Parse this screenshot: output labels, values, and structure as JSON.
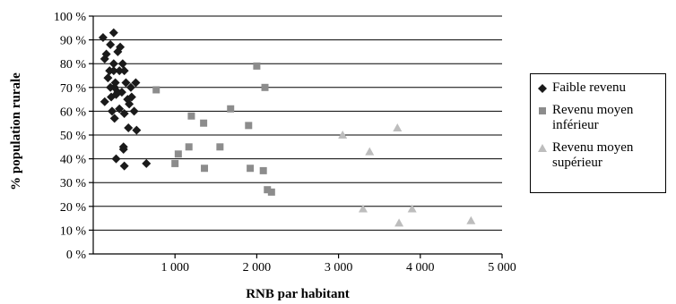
{
  "chart_data": {
    "type": "scatter",
    "xlabel": "RNB par habitant",
    "ylabel": "% population rurale",
    "xlim": [
      0,
      5000
    ],
    "ylim": [
      0,
      100
    ],
    "x_ticks": [
      "1 000",
      "2 000",
      "3 000",
      "4 000",
      "5 000"
    ],
    "y_ticks": [
      "0 %",
      "10 %",
      "20 %",
      "30 %",
      "40 %",
      "50 %",
      "60 %",
      "70 %",
      "80 %",
      "90 %",
      "100 %"
    ],
    "grid": "horizontal",
    "legend_position": "right",
    "series": [
      {
        "name": "Faible revenu",
        "marker": "diamond",
        "color": "#1a1a1a",
        "points": [
          [
            120,
            91
          ],
          [
            250,
            93
          ],
          [
            210,
            88
          ],
          [
            300,
            85
          ],
          [
            330,
            87
          ],
          [
            140,
            82
          ],
          [
            250,
            80
          ],
          [
            360,
            80
          ],
          [
            200,
            77
          ],
          [
            250,
            77
          ],
          [
            320,
            77
          ],
          [
            380,
            77
          ],
          [
            180,
            74
          ],
          [
            260,
            70
          ],
          [
            300,
            68
          ],
          [
            350,
            68
          ],
          [
            400,
            72
          ],
          [
            460,
            70
          ],
          [
            520,
            72
          ],
          [
            140,
            64
          ],
          [
            220,
            66
          ],
          [
            280,
            67
          ],
          [
            420,
            65
          ],
          [
            470,
            66
          ],
          [
            230,
            60
          ],
          [
            320,
            61
          ],
          [
            380,
            59
          ],
          [
            500,
            60
          ],
          [
            260,
            57
          ],
          [
            430,
            53
          ],
          [
            530,
            52
          ],
          [
            370,
            45
          ],
          [
            370,
            44
          ],
          [
            280,
            40
          ],
          [
            380,
            37
          ],
          [
            650,
            38
          ],
          [
            160,
            84
          ],
          [
            210,
            70
          ],
          [
            270,
            72
          ],
          [
            440,
            63
          ]
        ]
      },
      {
        "name": "Revenu moyen inférieur",
        "marker": "square",
        "color": "#8c8c8c",
        "points": [
          [
            770,
            69
          ],
          [
            1000,
            38
          ],
          [
            1040,
            42
          ],
          [
            1170,
            45
          ],
          [
            1200,
            58
          ],
          [
            1350,
            55
          ],
          [
            1360,
            36
          ],
          [
            1550,
            45
          ],
          [
            1680,
            61
          ],
          [
            1900,
            54
          ],
          [
            1920,
            36
          ],
          [
            2000,
            79
          ],
          [
            2080,
            35
          ],
          [
            2100,
            70
          ],
          [
            2130,
            27
          ],
          [
            2180,
            26
          ]
        ]
      },
      {
        "name": "Revenu moyen supérieur",
        "marker": "triangle",
        "color": "#bdbdbd",
        "points": [
          [
            3050,
            50
          ],
          [
            3300,
            19
          ],
          [
            3380,
            43
          ],
          [
            3720,
            53
          ],
          [
            3740,
            13
          ],
          [
            3900,
            19
          ],
          [
            4620,
            14
          ]
        ]
      }
    ]
  }
}
